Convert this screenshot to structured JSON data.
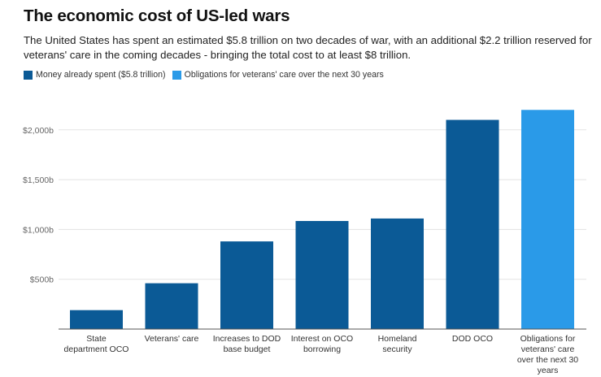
{
  "chart_data": {
    "type": "bar",
    "title": "The economic cost of US-led wars",
    "subtitle": "The United States has spent an estimated $5.8 trillion on two decades of war, with an additional $2.2 trillion reserved for veterans' care in the coming decades - bringing the total cost to at least $8 trillion.",
    "xlabel": "",
    "ylabel": "",
    "ylim": [
      0,
      2200
    ],
    "yticks": [
      500,
      1000,
      1500,
      2000
    ],
    "ytick_labels": [
      "$500b",
      "$1,000b",
      "$1,500b",
      "$2,000b"
    ],
    "grid": true,
    "legend_position": "top-left",
    "legend": [
      {
        "name": "Money already spent ($5.8 trillion)",
        "color": "#0b5a96"
      },
      {
        "name": "Obligations for veterans' care over the next 30 years",
        "color": "#2a9ae8"
      }
    ],
    "categories": [
      [
        "State",
        "department OCO"
      ],
      [
        "Veterans' care"
      ],
      [
        "Increases to DOD",
        "base budget"
      ],
      [
        "Interest on OCO",
        "borrowing"
      ],
      [
        "Homeland",
        "security"
      ],
      [
        "DOD OCO"
      ],
      [
        "Obligations for",
        "veterans' care",
        "over the next 30",
        "years"
      ]
    ],
    "values": [
      190,
      460,
      880,
      1085,
      1110,
      2100,
      2200
    ],
    "series_index": [
      0,
      0,
      0,
      0,
      0,
      0,
      1
    ]
  }
}
